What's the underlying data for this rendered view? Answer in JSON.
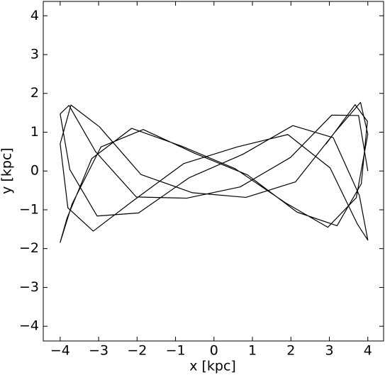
{
  "chart_data": {
    "type": "line",
    "xlabel": "x [kpc]",
    "ylabel": "y [kpc]",
    "xlim": [
      -4.44,
      4.41
    ],
    "ylim": [
      -4.38,
      4.37
    ],
    "xticks": [
      {
        "value": -4,
        "label": "−4"
      },
      {
        "value": -3,
        "label": "−3"
      },
      {
        "value": -2,
        "label": "−2"
      },
      {
        "value": -1,
        "label": "−1"
      },
      0,
      1,
      2,
      3,
      4
    ],
    "yticks": [
      {
        "value": -4,
        "label": "−4"
      },
      {
        "value": -3,
        "label": "−3"
      },
      {
        "value": -2,
        "label": "−2"
      },
      {
        "value": -1,
        "label": "−1"
      },
      0,
      1,
      2,
      3,
      4
    ],
    "color": "#000000",
    "x": [
      4.0,
      3.76,
      3.06,
      1.99,
      0.68,
      -0.71,
      -2.02,
      -3.08,
      -3.77,
      -4.0,
      -3.75,
      -3.04,
      -1.96,
      -0.64,
      0.75,
      2.05,
      3.1,
      3.78,
      4.0,
      3.73,
      3.02,
      1.92,
      0.6,
      -0.79,
      -2.08,
      -3.14,
      -3.8,
      -4.0,
      -3.72,
      -2.98,
      -1.9,
      -0.56,
      0.83,
      2.12,
      3.16,
      3.81,
      4.0,
      3.7,
      2.96,
      1.86,
      0.55,
      -0.84,
      -2.14,
      -3.18,
      -3.82,
      -4.0,
      -3.69,
      -2.94,
      -1.84,
      -0.51,
      0.87,
      2.16,
      3.2,
      3.83,
      3.99,
      3.67,
      2.91
    ],
    "y": [
      0,
      1.43,
      1.44,
      0.35,
      -0.41,
      -0.7,
      -0.67,
      0.5,
      1.69,
      1.47,
      0.04,
      -1.16,
      -1.08,
      -0.17,
      0.43,
      1.17,
      0.86,
      -0.63,
      -1.78,
      -1.37,
      0.08,
      0.94,
      0.62,
      0.19,
      -0.75,
      -1.55,
      -0.95,
      0.7,
      1.7,
      1.14,
      -0.09,
      -0.56,
      -0.68,
      -0.28,
      1.02,
      1.77,
      0.95,
      -0.69,
      -1.45,
      -0.82,
      0.06,
      0.64,
      1.1,
      0.32,
      -1.21,
      -1.84,
      -0.85,
      0.62,
      1.07,
      0.46,
      -0.1,
      -1.06,
      -1.41,
      -0.33,
      1.28,
      1.71,
      0.69
    ]
  }
}
